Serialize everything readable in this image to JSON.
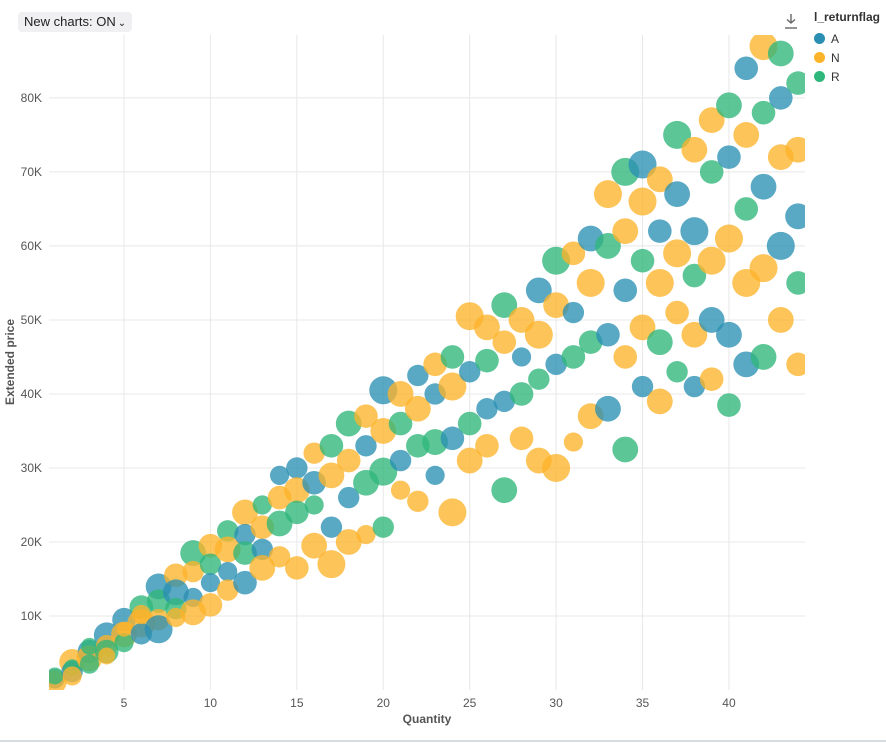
{
  "toolbar": {
    "toggle_label": "New charts: ON"
  },
  "legend": {
    "title": "l_returnflag",
    "items": [
      {
        "label": "A",
        "color": "#2a8fb3"
      },
      {
        "label": "N",
        "color": "#fdb42a"
      },
      {
        "label": "R",
        "color": "#2fb67a"
      }
    ]
  },
  "icons": {
    "download": "download-icon",
    "toggle": "chevron-down-icon"
  },
  "chart_data": {
    "type": "scatter",
    "subtype": "bubble",
    "xlabel": "Quantity",
    "ylabel": "Extended price",
    "xlim": [
      0.66,
      44.4
    ],
    "ylim": [
      0,
      88500
    ],
    "xticks": [
      5,
      10,
      15,
      20,
      25,
      30,
      35,
      40
    ],
    "yticks": [
      10000,
      20000,
      30000,
      40000,
      50000,
      60000,
      70000,
      80000
    ],
    "ytick_labels": [
      "10K",
      "20K",
      "30K",
      "40K",
      "50K",
      "60K",
      "70K",
      "80K"
    ],
    "grid": true,
    "legend_position": "right",
    "color_field": "l_returnflag",
    "fields": [
      "quantity",
      "extended_price",
      "l_returnflag",
      "size"
    ],
    "points": [
      [
        1,
        1500,
        "A",
        6
      ],
      [
        1,
        1100,
        "N",
        8
      ],
      [
        1,
        1900,
        "R",
        5
      ],
      [
        2,
        3800,
        "N",
        9
      ],
      [
        2,
        2500,
        "A",
        7
      ],
      [
        2,
        3000,
        "R",
        5
      ],
      [
        2,
        1900,
        "N",
        6
      ],
      [
        3,
        5200,
        "A",
        8
      ],
      [
        3,
        4300,
        "N",
        9
      ],
      [
        3,
        3500,
        "R",
        6
      ],
      [
        3,
        5900,
        "R",
        5
      ],
      [
        4,
        7400,
        "A",
        9
      ],
      [
        4,
        6000,
        "N",
        7
      ],
      [
        4,
        5200,
        "R",
        8
      ],
      [
        4,
        4600,
        "N",
        5
      ],
      [
        5,
        9500,
        "A",
        8
      ],
      [
        5,
        7500,
        "N",
        9
      ],
      [
        5,
        6400,
        "R",
        6
      ],
      [
        5,
        8200,
        "N",
        4
      ],
      [
        6,
        11200,
        "R",
        8
      ],
      [
        6,
        9000,
        "N",
        10
      ],
      [
        6,
        7600,
        "A",
        7
      ],
      [
        6,
        10200,
        "N",
        6
      ],
      [
        7,
        14000,
        "A",
        9
      ],
      [
        7,
        12000,
        "R",
        8
      ],
      [
        7,
        9500,
        "N",
        7
      ],
      [
        7,
        8200,
        "A",
        10
      ],
      [
        8,
        15500,
        "N",
        8
      ],
      [
        8,
        13200,
        "A",
        9
      ],
      [
        8,
        11000,
        "R",
        7
      ],
      [
        8,
        9800,
        "N",
        6
      ],
      [
        9,
        18500,
        "R",
        9
      ],
      [
        9,
        16000,
        "N",
        7
      ],
      [
        9,
        12500,
        "A",
        6
      ],
      [
        9,
        10500,
        "N",
        9
      ],
      [
        10,
        19500,
        "N",
        8
      ],
      [
        10,
        17000,
        "R",
        7
      ],
      [
        10,
        14500,
        "A",
        6
      ],
      [
        10,
        11500,
        "N",
        8
      ],
      [
        11,
        21500,
        "R",
        7
      ],
      [
        11,
        19000,
        "N",
        9
      ],
      [
        11,
        16000,
        "A",
        6
      ],
      [
        11,
        13500,
        "N",
        7
      ],
      [
        12,
        24000,
        "N",
        9
      ],
      [
        12,
        21000,
        "A",
        7
      ],
      [
        12,
        18500,
        "R",
        8
      ],
      [
        12,
        14500,
        "A",
        8
      ],
      [
        13,
        25000,
        "R",
        6
      ],
      [
        13,
        22000,
        "N",
        8
      ],
      [
        13,
        19000,
        "A",
        7
      ],
      [
        13,
        16500,
        "N",
        9
      ],
      [
        14,
        29000,
        "A",
        6
      ],
      [
        14,
        26000,
        "N",
        8
      ],
      [
        14,
        22500,
        "R",
        9
      ],
      [
        14,
        18000,
        "N",
        7
      ],
      [
        15,
        30000,
        "A",
        7
      ],
      [
        15,
        27000,
        "N",
        9
      ],
      [
        15,
        24000,
        "R",
        8
      ],
      [
        15,
        16500,
        "N",
        8
      ],
      [
        16,
        32000,
        "N",
        7
      ],
      [
        16,
        28000,
        "A",
        8
      ],
      [
        16,
        25000,
        "R",
        6
      ],
      [
        16,
        19500,
        "N",
        9
      ],
      [
        17,
        33000,
        "R",
        8
      ],
      [
        17,
        29000,
        "N",
        9
      ],
      [
        17,
        22000,
        "A",
        7
      ],
      [
        17,
        17000,
        "N",
        10
      ],
      [
        18,
        36000,
        "R",
        9
      ],
      [
        18,
        31000,
        "N",
        8
      ],
      [
        18,
        26000,
        "A",
        7
      ],
      [
        18,
        20000,
        "N",
        9
      ],
      [
        19,
        37000,
        "N",
        8
      ],
      [
        19,
        33000,
        "A",
        7
      ],
      [
        19,
        28000,
        "R",
        9
      ],
      [
        19,
        21000,
        "N",
        6
      ],
      [
        20,
        40500,
        "A",
        10
      ],
      [
        20,
        35000,
        "N",
        9
      ],
      [
        20,
        29500,
        "R",
        10
      ],
      [
        20,
        22000,
        "R",
        7
      ],
      [
        21,
        40000,
        "N",
        9
      ],
      [
        21,
        36000,
        "R",
        8
      ],
      [
        21,
        31000,
        "A",
        7
      ],
      [
        21,
        27000,
        "N",
        6
      ],
      [
        22,
        42500,
        "A",
        7
      ],
      [
        22,
        38000,
        "N",
        9
      ],
      [
        22,
        33000,
        "R",
        8
      ],
      [
        22,
        25500,
        "N",
        7
      ],
      [
        23,
        44000,
        "N",
        8
      ],
      [
        23,
        40000,
        "A",
        7
      ],
      [
        23,
        33500,
        "R",
        9
      ],
      [
        23,
        29000,
        "A",
        6
      ],
      [
        24,
        45000,
        "R",
        8
      ],
      [
        24,
        41000,
        "N",
        10
      ],
      [
        24,
        34000,
        "A",
        8
      ],
      [
        24,
        24000,
        "N",
        10
      ],
      [
        25,
        50500,
        "N",
        10
      ],
      [
        25,
        43000,
        "A",
        7
      ],
      [
        25,
        36000,
        "R",
        8
      ],
      [
        25,
        31000,
        "N",
        9
      ],
      [
        26,
        49000,
        "N",
        9
      ],
      [
        26,
        44500,
        "R",
        8
      ],
      [
        26,
        38000,
        "A",
        7
      ],
      [
        26,
        33000,
        "N",
        8
      ],
      [
        27,
        52000,
        "R",
        9
      ],
      [
        27,
        47000,
        "N",
        8
      ],
      [
        27,
        39000,
        "A",
        7
      ],
      [
        27,
        27000,
        "R",
        9
      ],
      [
        28,
        50000,
        "N",
        9
      ],
      [
        28,
        45000,
        "A",
        6
      ],
      [
        28,
        40000,
        "R",
        8
      ],
      [
        28,
        34000,
        "N",
        8
      ],
      [
        29,
        54000,
        "A",
        9
      ],
      [
        29,
        48000,
        "N",
        10
      ],
      [
        29,
        42000,
        "R",
        7
      ],
      [
        29,
        31000,
        "N",
        9
      ],
      [
        30,
        58000,
        "R",
        10
      ],
      [
        30,
        52000,
        "N",
        9
      ],
      [
        30,
        44000,
        "A",
        7
      ],
      [
        30,
        30000,
        "N",
        10
      ],
      [
        31,
        59000,
        "N",
        8
      ],
      [
        31,
        51000,
        "A",
        7
      ],
      [
        31,
        45000,
        "R",
        8
      ],
      [
        31,
        33500,
        "N",
        6
      ],
      [
        32,
        61000,
        "A",
        9
      ],
      [
        32,
        55000,
        "N",
        10
      ],
      [
        32,
        47000,
        "R",
        8
      ],
      [
        32,
        37000,
        "N",
        9
      ],
      [
        33,
        67000,
        "N",
        10
      ],
      [
        33,
        60000,
        "R",
        9
      ],
      [
        33,
        48000,
        "A",
        8
      ],
      [
        33,
        38000,
        "A",
        9
      ],
      [
        34,
        70000,
        "R",
        10
      ],
      [
        34,
        62000,
        "N",
        9
      ],
      [
        34,
        54000,
        "A",
        8
      ],
      [
        34,
        45000,
        "N",
        8
      ],
      [
        34,
        32500,
        "R",
        9
      ],
      [
        35,
        71000,
        "A",
        10
      ],
      [
        35,
        66000,
        "N",
        10
      ],
      [
        35,
        58000,
        "R",
        8
      ],
      [
        35,
        49000,
        "N",
        9
      ],
      [
        35,
        41000,
        "A",
        7
      ],
      [
        36,
        69000,
        "N",
        9
      ],
      [
        36,
        62000,
        "A",
        8
      ],
      [
        36,
        55000,
        "N",
        10
      ],
      [
        36,
        47000,
        "R",
        9
      ],
      [
        36,
        39000,
        "N",
        9
      ],
      [
        37,
        75000,
        "R",
        10
      ],
      [
        37,
        67000,
        "A",
        9
      ],
      [
        37,
        59000,
        "N",
        10
      ],
      [
        37,
        51000,
        "N",
        8
      ],
      [
        37,
        43000,
        "R",
        7
      ],
      [
        38,
        73000,
        "N",
        9
      ],
      [
        38,
        62000,
        "A",
        10
      ],
      [
        38,
        56000,
        "R",
        8
      ],
      [
        38,
        48000,
        "N",
        9
      ],
      [
        38,
        41000,
        "A",
        7
      ],
      [
        39,
        77000,
        "N",
        9
      ],
      [
        39,
        70000,
        "R",
        8
      ],
      [
        39,
        58000,
        "N",
        10
      ],
      [
        39,
        50000,
        "A",
        9
      ],
      [
        39,
        42000,
        "N",
        8
      ],
      [
        40,
        79000,
        "R",
        9
      ],
      [
        40,
        72000,
        "A",
        8
      ],
      [
        40,
        61000,
        "N",
        10
      ],
      [
        40,
        48000,
        "A",
        9
      ],
      [
        40,
        38500,
        "R",
        8
      ],
      [
        41,
        84000,
        "A",
        8
      ],
      [
        41,
        75000,
        "N",
        9
      ],
      [
        41,
        65000,
        "R",
        8
      ],
      [
        41,
        55000,
        "N",
        10
      ],
      [
        41,
        44000,
        "A",
        9
      ],
      [
        42,
        87000,
        "N",
        10
      ],
      [
        42,
        78000,
        "R",
        8
      ],
      [
        42,
        68000,
        "A",
        9
      ],
      [
        42,
        57000,
        "N",
        10
      ],
      [
        42,
        45000,
        "R",
        9
      ],
      [
        43,
        86000,
        "R",
        9
      ],
      [
        43,
        80000,
        "A",
        8
      ],
      [
        43,
        72000,
        "N",
        9
      ],
      [
        43,
        60000,
        "A",
        10
      ],
      [
        43,
        50000,
        "N",
        9
      ],
      [
        44,
        82000,
        "R",
        8
      ],
      [
        44,
        73000,
        "N",
        9
      ],
      [
        44,
        64000,
        "A",
        9
      ],
      [
        44,
        55000,
        "R",
        8
      ],
      [
        44,
        44000,
        "N",
        8
      ]
    ]
  }
}
